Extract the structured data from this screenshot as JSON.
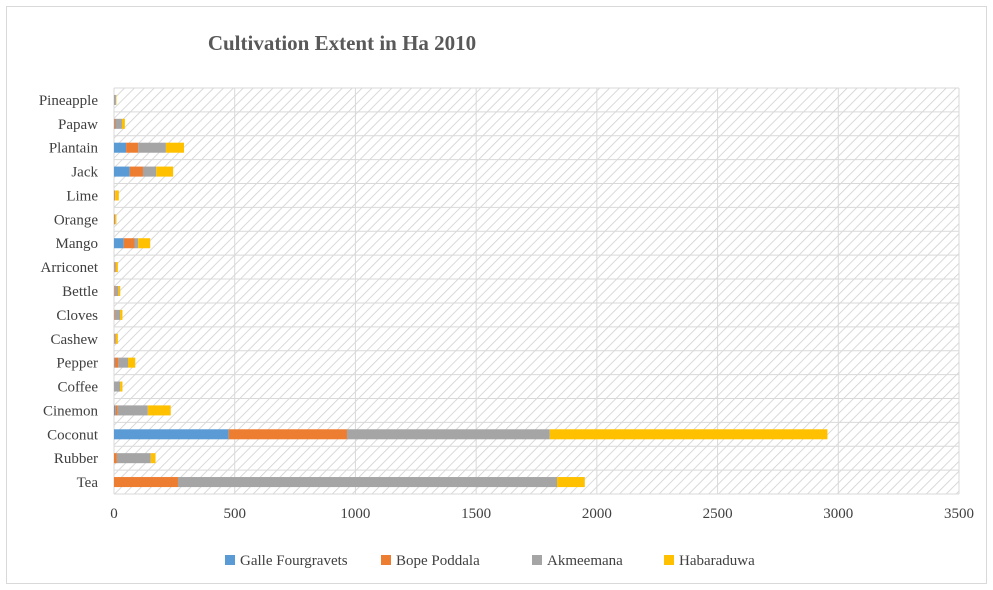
{
  "chart_data": {
    "type": "bar",
    "orientation": "horizontal",
    "stacked": true,
    "title": "Cultivation Extent in Ha 2010",
    "xlabel": "",
    "ylabel": "",
    "xlim": [
      0,
      3500
    ],
    "x_ticks": [
      "0",
      "500",
      "1000",
      "1500",
      "2000",
      "2500",
      "3000",
      "3500"
    ],
    "grid": true,
    "legend_position": "bottom",
    "categories": [
      "Tea",
      "Rubber",
      "Coconut",
      "Cinemon",
      "Coffee",
      "Pepper",
      "Cashew",
      "Cloves",
      "Bettle",
      "Arriconet",
      "Mango",
      "Orange",
      "Lime",
      "Jack",
      "Plantain",
      "Papaw",
      "Pineapple"
    ],
    "series": [
      {
        "name": "Galle Fourgravets",
        "color": "#5b9bd5",
        "values": [
          0,
          0,
          475,
          5,
          0,
          3,
          0,
          0,
          0,
          0,
          40,
          0,
          0,
          65,
          50,
          3,
          0
        ]
      },
      {
        "name": "Bope Poddala",
        "color": "#ed7d31",
        "values": [
          265,
          12,
          490,
          10,
          0,
          15,
          3,
          3,
          3,
          3,
          45,
          2,
          2,
          55,
          50,
          5,
          0
        ]
      },
      {
        "name": "Akmeemana",
        "color": "#a5a5a5",
        "values": [
          1570,
          140,
          840,
          125,
          25,
          40,
          5,
          22,
          15,
          5,
          15,
          3,
          3,
          55,
          115,
          25,
          8
        ]
      },
      {
        "name": "Habaraduwa",
        "color": "#ffc000",
        "values": [
          115,
          20,
          1150,
          95,
          10,
          30,
          8,
          10,
          8,
          8,
          50,
          5,
          15,
          70,
          75,
          12,
          2
        ]
      }
    ]
  }
}
